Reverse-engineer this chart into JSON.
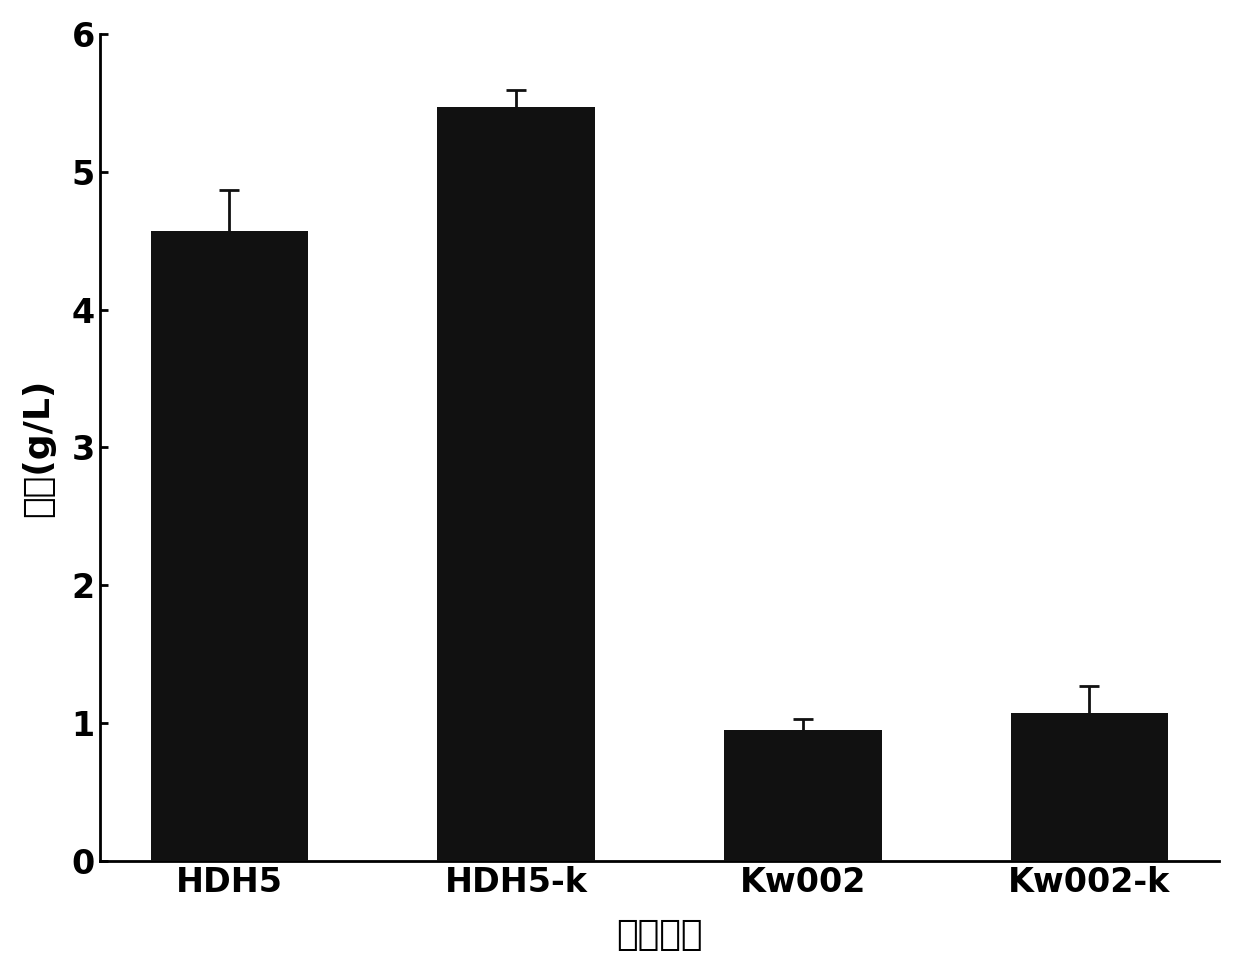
{
  "categories": [
    "HDH5",
    "HDH5-k",
    "Kw002",
    "Kw002-k"
  ],
  "values": [
    4.57,
    5.47,
    0.95,
    1.07
  ],
  "errors": [
    0.3,
    0.12,
    0.08,
    0.2
  ],
  "bar_color": "#111111",
  "bar_width": 0.55,
  "ylim": [
    0,
    6
  ],
  "yticks": [
    0,
    1,
    2,
    3,
    4,
    5,
    6
  ],
  "ylabel": "产量(g/L)",
  "xlabel": "菌株名称",
  "ylabel_fontsize": 26,
  "xlabel_fontsize": 26,
  "tick_fontsize": 24,
  "xtick_fontsize": 24,
  "background_color": "#ffffff",
  "error_capsize": 7,
  "error_linewidth": 2.0,
  "error_color": "#111111"
}
